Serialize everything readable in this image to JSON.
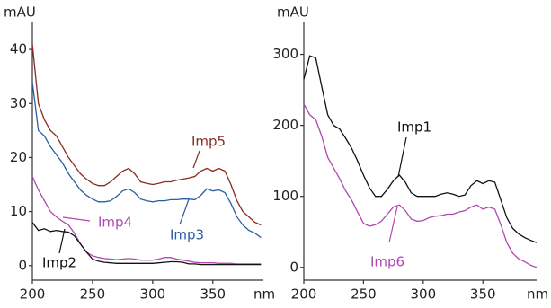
{
  "chart_data": [
    {
      "type": "line",
      "y_label": "mAU",
      "x_label": "nm",
      "x": [
        200,
        205,
        210,
        215,
        220,
        225,
        230,
        235,
        240,
        245,
        250,
        255,
        260,
        265,
        270,
        275,
        280,
        285,
        290,
        295,
        300,
        305,
        310,
        315,
        320,
        325,
        330,
        335,
        340,
        345,
        350,
        355,
        360,
        365,
        370,
        375,
        380,
        385,
        390
      ],
      "xlim": [
        200,
        392
      ],
      "ylim": [
        -2.7,
        45
      ],
      "xticks": [
        200,
        250,
        300,
        350
      ],
      "yticks": [
        0,
        10,
        20,
        30,
        40
      ],
      "series": [
        {
          "name": "Imp5",
          "color": "#8b2a1e",
          "values": [
            41,
            30,
            27,
            25,
            24,
            22,
            20,
            18.5,
            17,
            16,
            15.2,
            14.8,
            14.8,
            15.5,
            16.5,
            17.5,
            18,
            17,
            15.5,
            15.2,
            15,
            15.2,
            15.5,
            15.5,
            15.8,
            16,
            16.2,
            16.5,
            17.5,
            18,
            17.5,
            18,
            17.5,
            15,
            12,
            10,
            9,
            8,
            7.5
          ]
        },
        {
          "name": "Imp3",
          "color": "#2a5fa0",
          "values": [
            34,
            25,
            24,
            22,
            20.5,
            19,
            17,
            15.5,
            14,
            13,
            12.3,
            11.8,
            11.8,
            12,
            12.8,
            13.8,
            14.2,
            13.5,
            12.3,
            12,
            11.8,
            12,
            12,
            12.2,
            12.2,
            12.3,
            12.3,
            12.2,
            13,
            14.2,
            13.8,
            14,
            13.5,
            11.5,
            9,
            7.5,
            6.5,
            6,
            5.2
          ]
        },
        {
          "name": "Imp4",
          "color": "#b048b0",
          "values": [
            16.5,
            14,
            12,
            10,
            9,
            8.2,
            7.5,
            6,
            4,
            2.5,
            1.8,
            1.5,
            1.3,
            1.2,
            1.1,
            1.2,
            1.3,
            1.2,
            1,
            1,
            1,
            1.2,
            1.5,
            1.5,
            1.2,
            1,
            0.8,
            0.6,
            0.5,
            0.5,
            0.5,
            0.4,
            0.4,
            0.4,
            0.3,
            0.3,
            0.3,
            0.3,
            0.3
          ]
        },
        {
          "name": "Imp2",
          "color": "#111111",
          "values": [
            8,
            6.5,
            6.8,
            6.3,
            6.5,
            6.3,
            6.2,
            5.5,
            4,
            2.5,
            1.2,
            0.8,
            0.6,
            0.5,
            0.4,
            0.4,
            0.4,
            0.4,
            0.4,
            0.4,
            0.4,
            0.5,
            0.6,
            0.7,
            0.7,
            0.6,
            0.3,
            0.3,
            0.2,
            0.2,
            0.2,
            0.2,
            0.2,
            0.2,
            0.2,
            0.2,
            0.2,
            0.2,
            0.2
          ]
        }
      ]
    },
    {
      "type": "line",
      "y_label": "mAU",
      "x_label": "nm",
      "x": [
        200,
        205,
        210,
        215,
        220,
        225,
        230,
        235,
        240,
        245,
        250,
        255,
        260,
        265,
        270,
        275,
        280,
        285,
        290,
        295,
        300,
        305,
        310,
        315,
        320,
        325,
        330,
        335,
        340,
        345,
        350,
        355,
        360,
        365,
        370,
        375,
        380,
        385,
        390,
        395
      ],
      "xlim": [
        200,
        395
      ],
      "ylim": [
        -18,
        345
      ],
      "xticks": [
        200,
        250,
        300,
        350
      ],
      "yticks": [
        0,
        100,
        200,
        300
      ],
      "series": [
        {
          "name": "Imp1",
          "color": "#111111",
          "values": [
            265,
            298,
            295,
            255,
            215,
            200,
            195,
            182,
            168,
            150,
            130,
            112,
            100,
            100,
            110,
            122,
            130,
            120,
            105,
            100,
            100,
            100,
            100,
            103,
            105,
            103,
            100,
            102,
            115,
            122,
            118,
            122,
            120,
            95,
            70,
            55,
            47,
            42,
            38,
            35
          ]
        },
        {
          "name": "Imp6",
          "color": "#b048b0",
          "values": [
            230,
            215,
            208,
            185,
            155,
            140,
            125,
            108,
            95,
            78,
            62,
            58,
            60,
            65,
            75,
            85,
            88,
            80,
            68,
            65,
            66,
            70,
            72,
            73,
            75,
            75,
            78,
            80,
            85,
            88,
            82,
            85,
            82,
            60,
            35,
            20,
            12,
            8,
            3,
            0
          ]
        }
      ]
    }
  ]
}
